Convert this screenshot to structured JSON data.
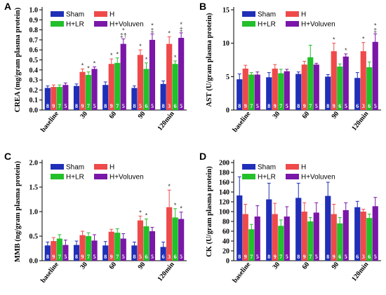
{
  "colors": {
    "Sham": "#1f2fb8",
    "H": "#ef4a4a",
    "H+LR": "#22c02a",
    "H+Voluven": "#7a16a8"
  },
  "chart_data": [
    {
      "panel": "A",
      "type": "bar",
      "ylabel": "CREA (mg/gram plasma protein)",
      "ylim": [
        0,
        1.0
      ],
      "yticks": [
        "0.0",
        "0.1",
        "0.2",
        "0.3",
        "0.4",
        "0.5",
        "0.6",
        "0.7",
        "0.8",
        "0.9",
        "1.0"
      ],
      "categories": [
        "baseline",
        "30",
        "60",
        "90",
        "120min"
      ],
      "legend": [
        "Sham",
        "H",
        "H+LR",
        "H+Voluven"
      ],
      "series": [
        {
          "name": "Sham",
          "values": [
            0.22,
            0.24,
            0.25,
            0.22,
            0.26
          ],
          "errors": [
            0.02,
            0.02,
            0.03,
            0.02,
            0.03
          ],
          "n": [
            "8",
            "8",
            "8",
            "8",
            "8"
          ],
          "sig": [
            "",
            "",
            "",
            "",
            ""
          ]
        },
        {
          "name": "H",
          "values": [
            0.23,
            0.38,
            0.46,
            0.55,
            0.66
          ],
          "errors": [
            0.02,
            0.03,
            0.05,
            0.05,
            0.07
          ],
          "n": [
            "9",
            "9",
            "9",
            "5",
            "3"
          ],
          "sig": [
            "",
            "*",
            "*",
            "*",
            "*"
          ]
        },
        {
          "name": "H+LR",
          "values": [
            0.23,
            0.35,
            0.47,
            0.41,
            0.46
          ],
          "errors": [
            0.02,
            0.03,
            0.05,
            0.06,
            0.03
          ],
          "n": [
            "7",
            "7",
            "7",
            "6",
            "6"
          ],
          "sig": [
            "",
            "*",
            "*",
            "*",
            "*"
          ]
        },
        {
          "name": "H+Voluven",
          "values": [
            0.25,
            0.41,
            0.66,
            0.7,
            0.72
          ],
          "errors": [
            0.02,
            0.02,
            0.05,
            0.06,
            0.05
          ],
          "n": [
            "5",
            "5",
            "5",
            "5",
            "5"
          ],
          "sig": [
            "",
            "*",
            "*\n‡†",
            "*\n‡",
            "*\n‡"
          ]
        }
      ]
    },
    {
      "panel": "B",
      "type": "bar",
      "ylabel": "AST (U/gram plasma protein)",
      "ylim": [
        0,
        15
      ],
      "yticks": [
        "0",
        "5",
        "10",
        "15"
      ],
      "categories": [
        "baseline",
        "30",
        "60",
        "90",
        "120min"
      ],
      "legend": [
        "Sham",
        "H",
        "H+LR",
        "H+Voluven"
      ],
      "series": [
        {
          "name": "Sham",
          "values": [
            4.6,
            4.9,
            5.4,
            5.0,
            4.8
          ],
          "errors": [
            0.8,
            0.7,
            0.3,
            0.3,
            0.8
          ],
          "n": [
            "8",
            "8",
            "8",
            "8",
            "6"
          ],
          "sig": [
            "",
            "",
            "",
            "",
            ""
          ]
        },
        {
          "name": "H",
          "values": [
            6.2,
            6.2,
            6.8,
            8.8,
            8.8
          ],
          "errors": [
            0.5,
            0.6,
            0.5,
            1.2,
            1.3
          ],
          "n": [
            "9",
            "9",
            "9",
            "9",
            "3"
          ],
          "sig": [
            "",
            "",
            "",
            "*",
            "*"
          ]
        },
        {
          "name": "H+LR",
          "values": [
            5.3,
            5.5,
            7.9,
            6.5,
            6.4
          ],
          "errors": [
            0.3,
            0.6,
            1.8,
            0.4,
            0.8
          ],
          "n": [
            "7",
            "7",
            "7",
            "6",
            "6"
          ],
          "sig": [
            "",
            "",
            "",
            "",
            ""
          ]
        },
        {
          "name": "H+Voluven",
          "values": [
            5.3,
            5.8,
            6.8,
            8.0,
            10.2
          ],
          "errors": [
            0.4,
            0.3,
            0.2,
            0.4,
            1.2
          ],
          "n": [
            "5",
            "5",
            "5",
            "5",
            "5"
          ],
          "sig": [
            "",
            "",
            "",
            "*",
            "*\n‡"
          ]
        }
      ]
    },
    {
      "panel": "C",
      "type": "bar",
      "ylabel": "MMB (ng/gram plasma protein)",
      "ylim": [
        0,
        2.0
      ],
      "yticks": [
        "0.0",
        "0.5",
        "1.0",
        "1.5",
        "2.0"
      ],
      "categories": [
        "baseline",
        "30",
        "60",
        "90",
        "120min"
      ],
      "legend": [
        "Sham",
        "H",
        "H+LR",
        "H+Voluven"
      ],
      "series": [
        {
          "name": "Sham",
          "values": [
            0.31,
            0.32,
            0.31,
            0.31,
            0.28
          ],
          "errors": [
            0.07,
            0.08,
            0.08,
            0.07,
            0.1
          ],
          "n": [
            "8",
            "8",
            "8",
            "8",
            "6"
          ],
          "sig": [
            "",
            "",
            "",
            "",
            ""
          ]
        },
        {
          "name": "H",
          "values": [
            0.4,
            0.52,
            0.59,
            0.82,
            1.09
          ],
          "errors": [
            0.07,
            0.08,
            0.05,
            0.09,
            0.35
          ],
          "n": [
            "9",
            "9",
            "9",
            "5",
            "3"
          ],
          "sig": [
            "",
            "",
            "",
            "*",
            "*"
          ]
        },
        {
          "name": "H+LR",
          "values": [
            0.45,
            0.5,
            0.57,
            0.7,
            0.88
          ],
          "errors": [
            0.08,
            0.07,
            0.08,
            0.15,
            0.18
          ],
          "n": [
            "7",
            "7",
            "7",
            "6",
            "6"
          ],
          "sig": [
            "",
            "",
            "",
            "*",
            "*"
          ]
        },
        {
          "name": "H+Voluven",
          "values": [
            0.32,
            0.41,
            0.45,
            0.6,
            0.85
          ],
          "errors": [
            0.1,
            0.12,
            0.1,
            0.08,
            0.14
          ],
          "n": [
            "5",
            "5",
            "5",
            "5",
            "5"
          ],
          "sig": [
            "",
            "",
            "",
            "",
            "*"
          ]
        }
      ]
    },
    {
      "panel": "D",
      "type": "bar",
      "ylabel": "CK (U/gram plasma protein)",
      "ylim": [
        0,
        200
      ],
      "yticks": [
        "0",
        "20",
        "40",
        "60",
        "80",
        "100",
        "120",
        "140",
        "160",
        "180",
        "200"
      ],
      "categories": [
        "baseline",
        "30",
        "60",
        "90",
        "120min"
      ],
      "legend": [
        "Sham",
        "H",
        "H+LR",
        "H+Voluven"
      ],
      "series": [
        {
          "name": "Sham",
          "values": [
            133,
            125,
            128,
            132,
            109
          ],
          "errors": [
            38,
            33,
            30,
            28,
            12
          ],
          "n": [
            "8",
            "8",
            "8",
            "8",
            "6"
          ],
          "sig": [
            "",
            "",
            "",
            "",
            ""
          ]
        },
        {
          "name": "H",
          "values": [
            95,
            95,
            100,
            95,
            100
          ],
          "errors": [
            20,
            22,
            18,
            20,
            5
          ],
          "n": [
            "9",
            "9",
            "9",
            "9",
            "3"
          ],
          "sig": [
            "",
            "",
            "",
            "",
            ""
          ]
        },
        {
          "name": "H+LR",
          "values": [
            64,
            71,
            80,
            76,
            87
          ],
          "errors": [
            10,
            12,
            8,
            12,
            8
          ],
          "n": [
            "7",
            "7",
            "7",
            "6",
            "6"
          ],
          "sig": [
            "",
            "",
            "",
            "",
            ""
          ]
        },
        {
          "name": "H+Voluven",
          "values": [
            90,
            90,
            98,
            103,
            111
          ],
          "errors": [
            22,
            20,
            20,
            15,
            18
          ],
          "n": [
            "5",
            "5",
            "5",
            "5",
            "5"
          ],
          "sig": [
            "",
            "",
            "",
            "",
            ""
          ]
        }
      ]
    }
  ]
}
